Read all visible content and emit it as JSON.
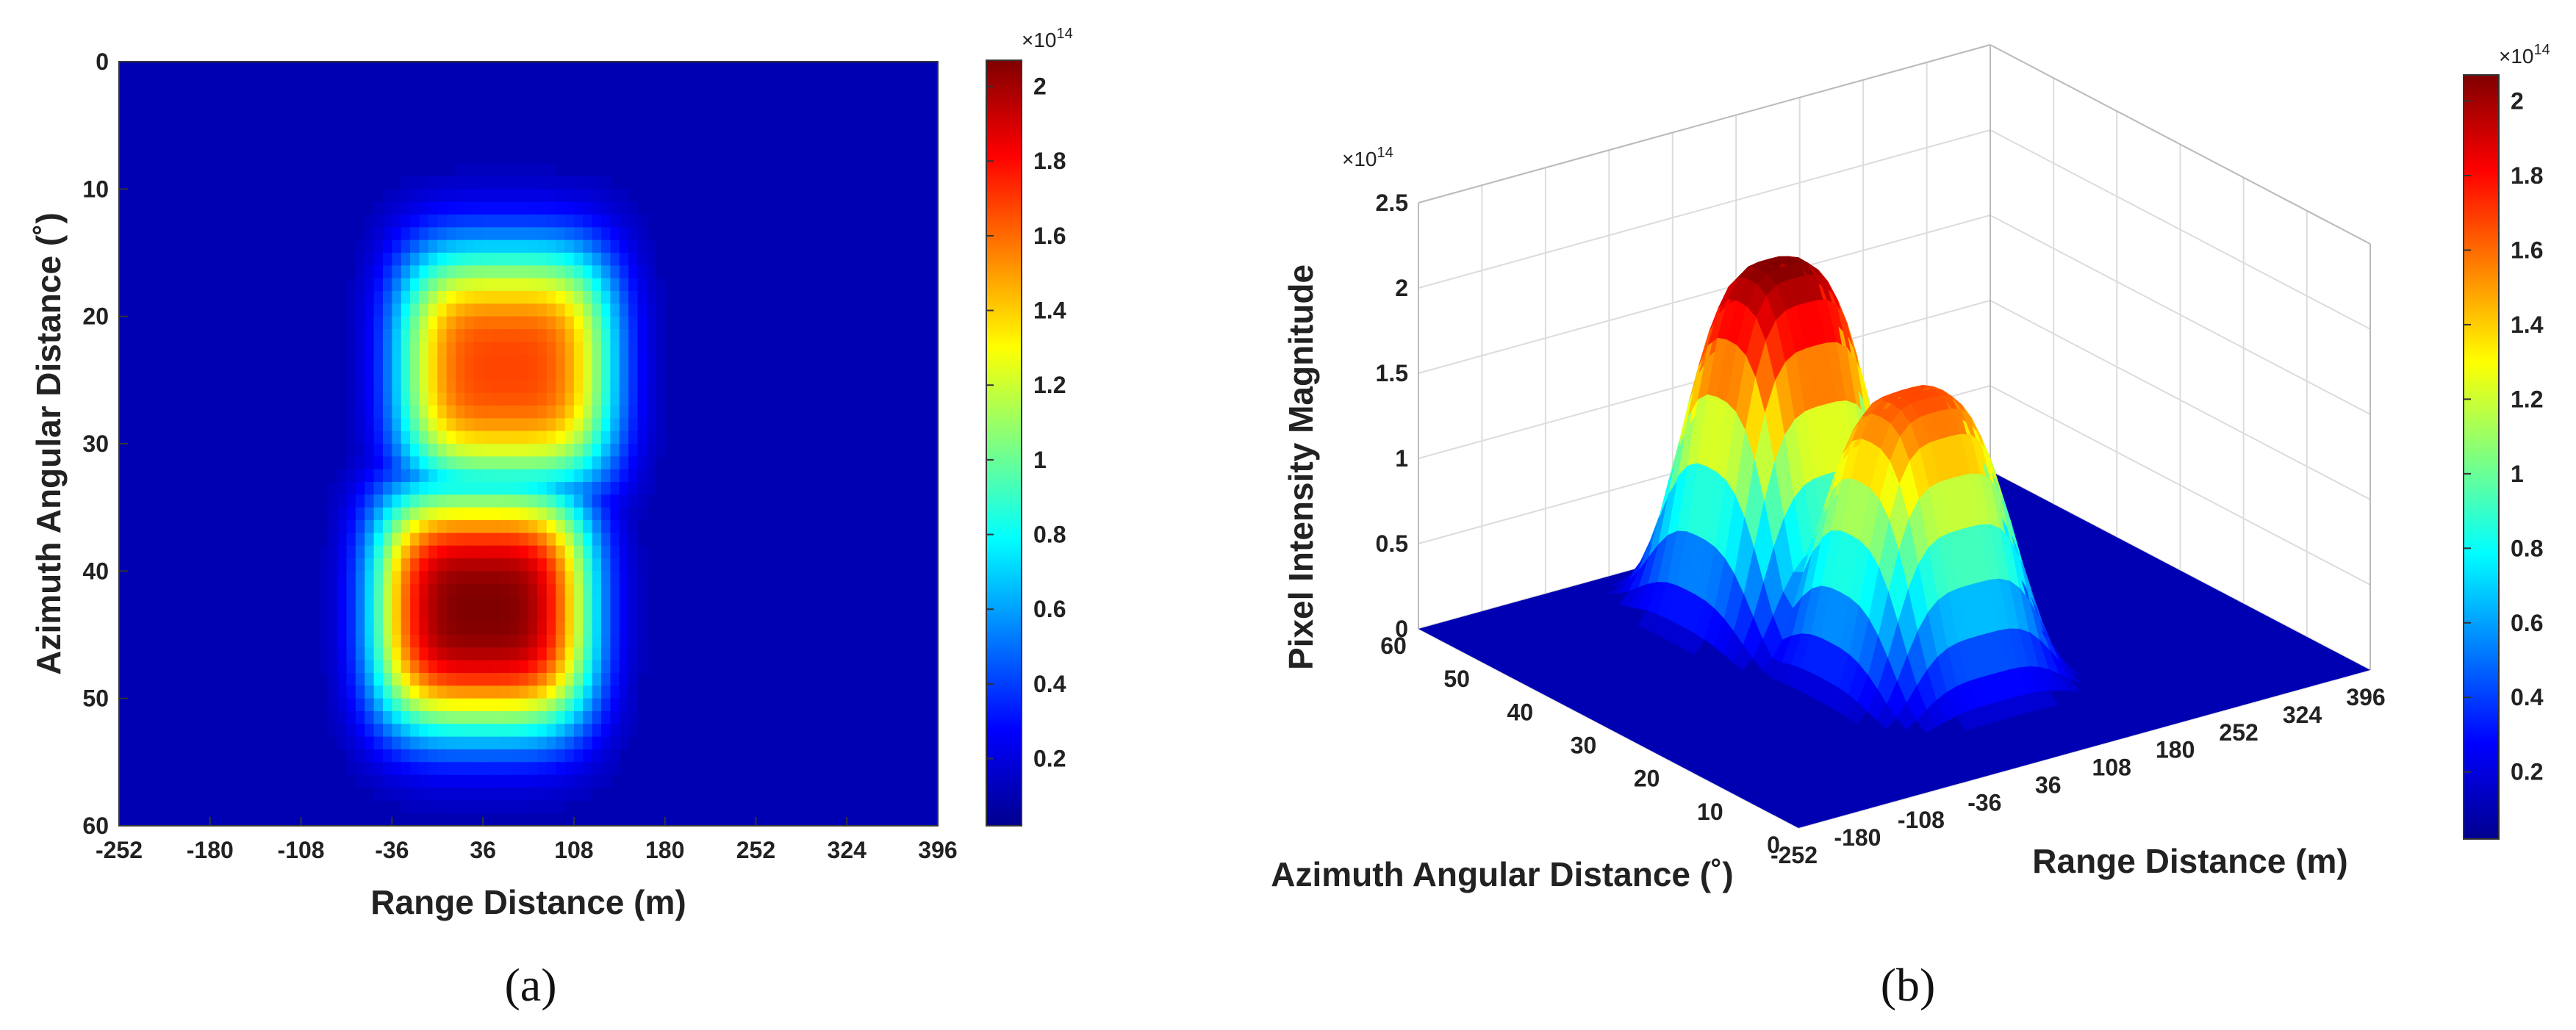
{
  "chart_data": [
    {
      "panel": "(a)",
      "type": "heatmap",
      "title": "",
      "xlabel": "Range Distance (m)",
      "ylabel": "Azimuth Angular Distance (˚)",
      "x_ticks": [
        "-252",
        "-180",
        "-108",
        "-36",
        "36",
        "108",
        "180",
        "252",
        "324",
        "396"
      ],
      "y_ticks": [
        "0",
        "10",
        "20",
        "30",
        "40",
        "50",
        "60"
      ],
      "xlim": [
        -252,
        396
      ],
      "ylim": [
        0,
        60
      ],
      "y_reversed": true,
      "colorbar": {
        "colormap": "jet",
        "range": [
          0.02,
          2.07
        ],
        "ticks": [
          "0.2",
          "0.4",
          "0.6",
          "0.8",
          "1",
          "1.2",
          "1.4",
          "1.6",
          "1.8",
          "2"
        ],
        "exponent": "×10",
        "exponent_power": "14"
      },
      "features": [
        {
          "center_range_m": 54,
          "center_azimuth_deg": 24,
          "peak": 1.65
        },
        {
          "center_range_m": 36,
          "center_azimuth_deg": 43,
          "peak": 2.07
        }
      ],
      "grid": false
    },
    {
      "panel": "(b)",
      "type": "surface",
      "title": "",
      "xlabel": "Range Distance (m)",
      "ylabel": "Azimuth Angular Distance (˚)",
      "zlabel": "Pixel Intensity Magnitude",
      "x_ticks": [
        "-252",
        "-180",
        "-108",
        "-36",
        "36",
        "108",
        "180",
        "252",
        "324",
        "396"
      ],
      "y_ticks": [
        "0",
        "10",
        "20",
        "30",
        "40",
        "50",
        "60"
      ],
      "z_ticks": [
        "0",
        "0.5",
        "1",
        "1.5",
        "2",
        "2.5"
      ],
      "z_exponent": "×10",
      "z_exponent_power": "14",
      "zlim": [
        0,
        2.5
      ],
      "colorbar": {
        "colormap": "jet",
        "range": [
          0.02,
          2.07
        ],
        "ticks": [
          "0.2",
          "0.4",
          "0.6",
          "0.8",
          "1",
          "1.2",
          "1.4",
          "1.6",
          "1.8",
          "2"
        ],
        "exponent": "×10",
        "exponent_power": "14"
      },
      "grid": true
    }
  ],
  "captions": {
    "a": "(a)",
    "b": "(b)"
  }
}
